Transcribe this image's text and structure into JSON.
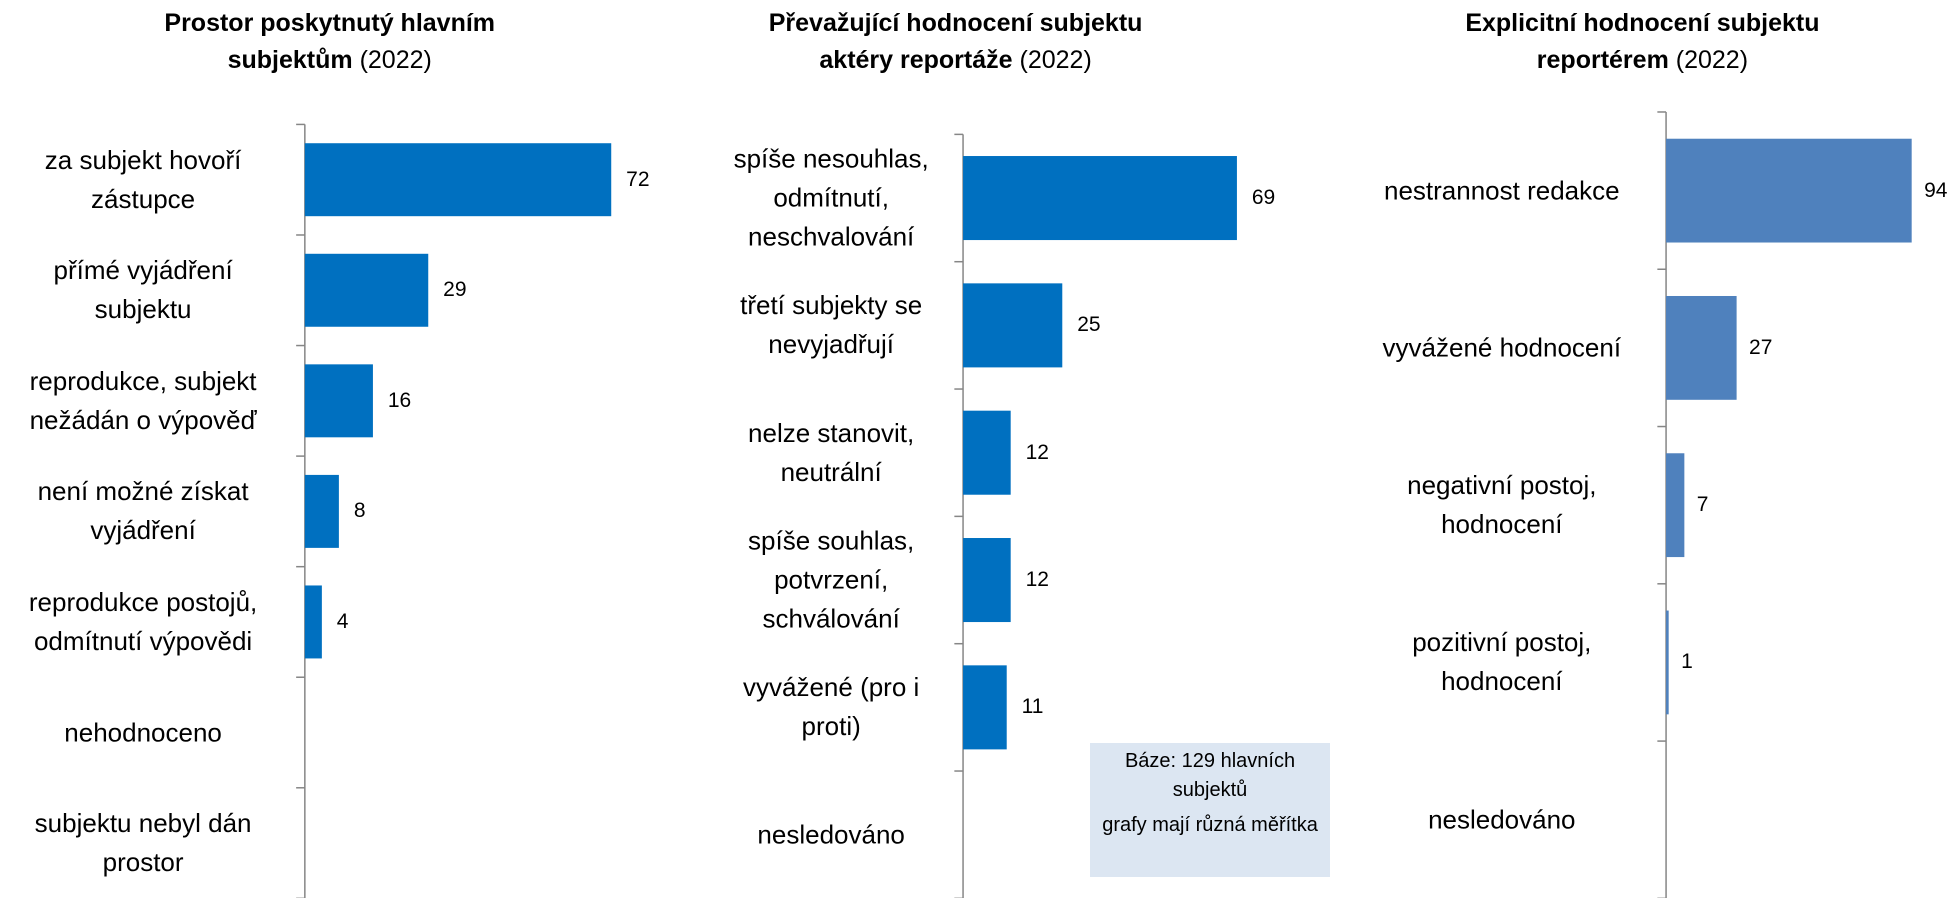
{
  "chart_data": [
    {
      "type": "bar",
      "title": "Prostor poskytnutý hlavním subjektům",
      "subtitle": "(2022)",
      "categories": [
        "za subjekt hovoří zástupce",
        "přímé vyjádření subjektu",
        "reprodukce, subjekt nežádán o výpověď",
        "není možné získat vyjádření",
        "reprodukce postojů, odmítnutí výpovědi",
        "nehodnoceno",
        "subjektu nebyl dán prostor"
      ],
      "values": [
        72,
        29,
        16,
        8,
        4,
        null,
        null
      ],
      "color": "#0070c0",
      "xlim": [
        0,
        100
      ]
    },
    {
      "type": "bar",
      "title": "Převažující hodnocení subjektu aktéry reportáže",
      "subtitle": "(2022)",
      "categories": [
        "spíše nesouhlas, odmítnutí, neschvalování",
        "třetí subjekty se nevyjadřují",
        "nelze stanovit, neutrální",
        "spíše souhlas, potvrzení, schválování",
        "vyvážené (pro i proti)",
        "nesledováno"
      ],
      "values": [
        69,
        25,
        12,
        12,
        11,
        null
      ],
      "color": "#0070c0",
      "xlim": [
        0,
        100
      ],
      "annotations": [
        "Báze: 129 hlavních subjektů",
        "grafy mají různá měřítka"
      ]
    },
    {
      "type": "bar",
      "title": "Explicitní hodnocení subjektu reportérem",
      "subtitle": "(2022)",
      "categories": [
        "nestrannost redakce",
        "vyvážené hodnocení",
        "negativní postoj, hodnocení",
        "pozitivní postoj, hodnocení",
        "nesledováno"
      ],
      "values": [
        94,
        27,
        7,
        1,
        null
      ],
      "color": "#4f81bd",
      "xlim": [
        0,
        100
      ]
    }
  ]
}
